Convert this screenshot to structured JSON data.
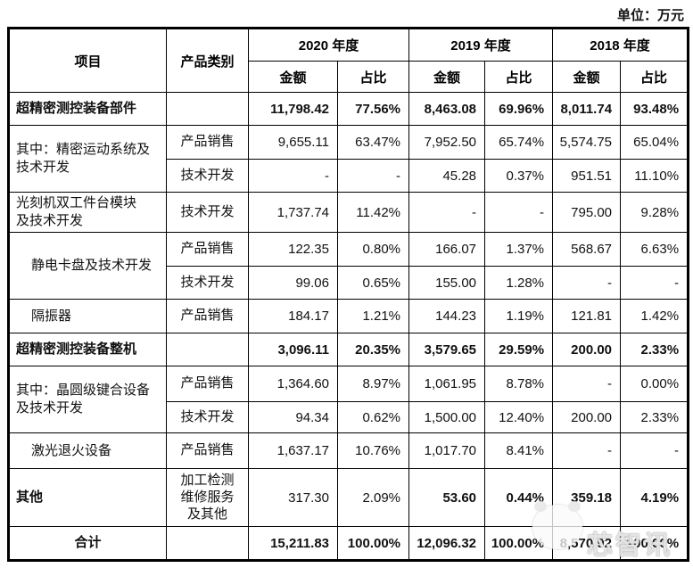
{
  "unit_label": "单位：万元",
  "colors": {
    "table_border": "#000000",
    "text": "#111111",
    "background": "#ffffff",
    "watermark": "#f5f5f5"
  },
  "watermark": {
    "text": "芯智讯"
  },
  "table": {
    "header": {
      "col_item": "项目",
      "col_category": "产品类别",
      "year_groups": [
        {
          "label": "2020 年度"
        },
        {
          "label": "2019 年度"
        },
        {
          "label": "2018 年度"
        }
      ],
      "sub_amount": "金额",
      "sub_ratio": "占比"
    },
    "rows": [
      {
        "item": "超精密测控装备部件",
        "item_class": "bold",
        "category": "",
        "values": [
          "11,798.42",
          "77.56%",
          "8,463.08",
          "69.96%",
          "8,011.74",
          "93.48%"
        ],
        "values_bold": true
      },
      {
        "item": "其中：精密运动系统及\n技术开发",
        "item_rowspan": 2,
        "category": "产品销售",
        "values": [
          "9,655.11",
          "63.47%",
          "7,952.50",
          "65.74%",
          "5,574.75",
          "65.04%"
        ]
      },
      {
        "category": "技术开发",
        "values": [
          "-",
          "-",
          "45.28",
          "0.37%",
          "951.51",
          "11.10%"
        ]
      },
      {
        "item": "光刻机双工件台模块\n及技术开发",
        "category": "技术开发",
        "values": [
          "1,737.74",
          "11.42%",
          "-",
          "-",
          "795.00",
          "9.28%"
        ]
      },
      {
        "item": "静电卡盘及技术开发",
        "item_class": "sub",
        "item_rowspan": 2,
        "category": "产品销售",
        "values": [
          "122.35",
          "0.80%",
          "166.07",
          "1.37%",
          "568.67",
          "6.63%"
        ]
      },
      {
        "category": "技术开发",
        "values": [
          "99.06",
          "0.65%",
          "155.00",
          "1.28%",
          "-",
          "-"
        ]
      },
      {
        "item": "隔振器",
        "item_class": "sub",
        "category": "产品销售",
        "values": [
          "184.17",
          "1.21%",
          "144.23",
          "1.19%",
          "121.81",
          "1.42%"
        ]
      },
      {
        "item": "超精密测控装备整机",
        "item_class": "bold",
        "category": "",
        "values": [
          "3,096.11",
          "20.35%",
          "3,579.65",
          "29.59%",
          "200.00",
          "2.33%"
        ],
        "values_bold": true
      },
      {
        "item": "其中：晶圆级键合设备\n及技术开发",
        "item_rowspan": 2,
        "category": "产品销售",
        "values": [
          "1,364.60",
          "8.97%",
          "1,061.95",
          "8.78%",
          "-",
          "0.00%"
        ]
      },
      {
        "category": "技术开发",
        "values": [
          "94.34",
          "0.62%",
          "1,500.00",
          "12.40%",
          "200.00",
          "2.33%"
        ]
      },
      {
        "item": "激光退火设备",
        "item_class": "sub",
        "category": "产品销售",
        "values": [
          "1,637.17",
          "10.76%",
          "1,017.70",
          "8.41%",
          "-",
          "-"
        ]
      },
      {
        "item": "其他",
        "item_class": "bold",
        "category": "加工检测\n维修服务\n及其他",
        "values": [
          "317.30",
          "2.09%",
          "53.60",
          "0.44%",
          "359.18",
          "4.19%"
        ],
        "values_bold": [
          false,
          false,
          true,
          true,
          true,
          true
        ]
      },
      {
        "item": "合计",
        "item_class": "total",
        "category": "",
        "values": [
          "15,211.83",
          "100.00%",
          "12,096.32",
          "100.00%",
          "8,570.92",
          "100.00%"
        ],
        "values_bold": true
      }
    ]
  }
}
